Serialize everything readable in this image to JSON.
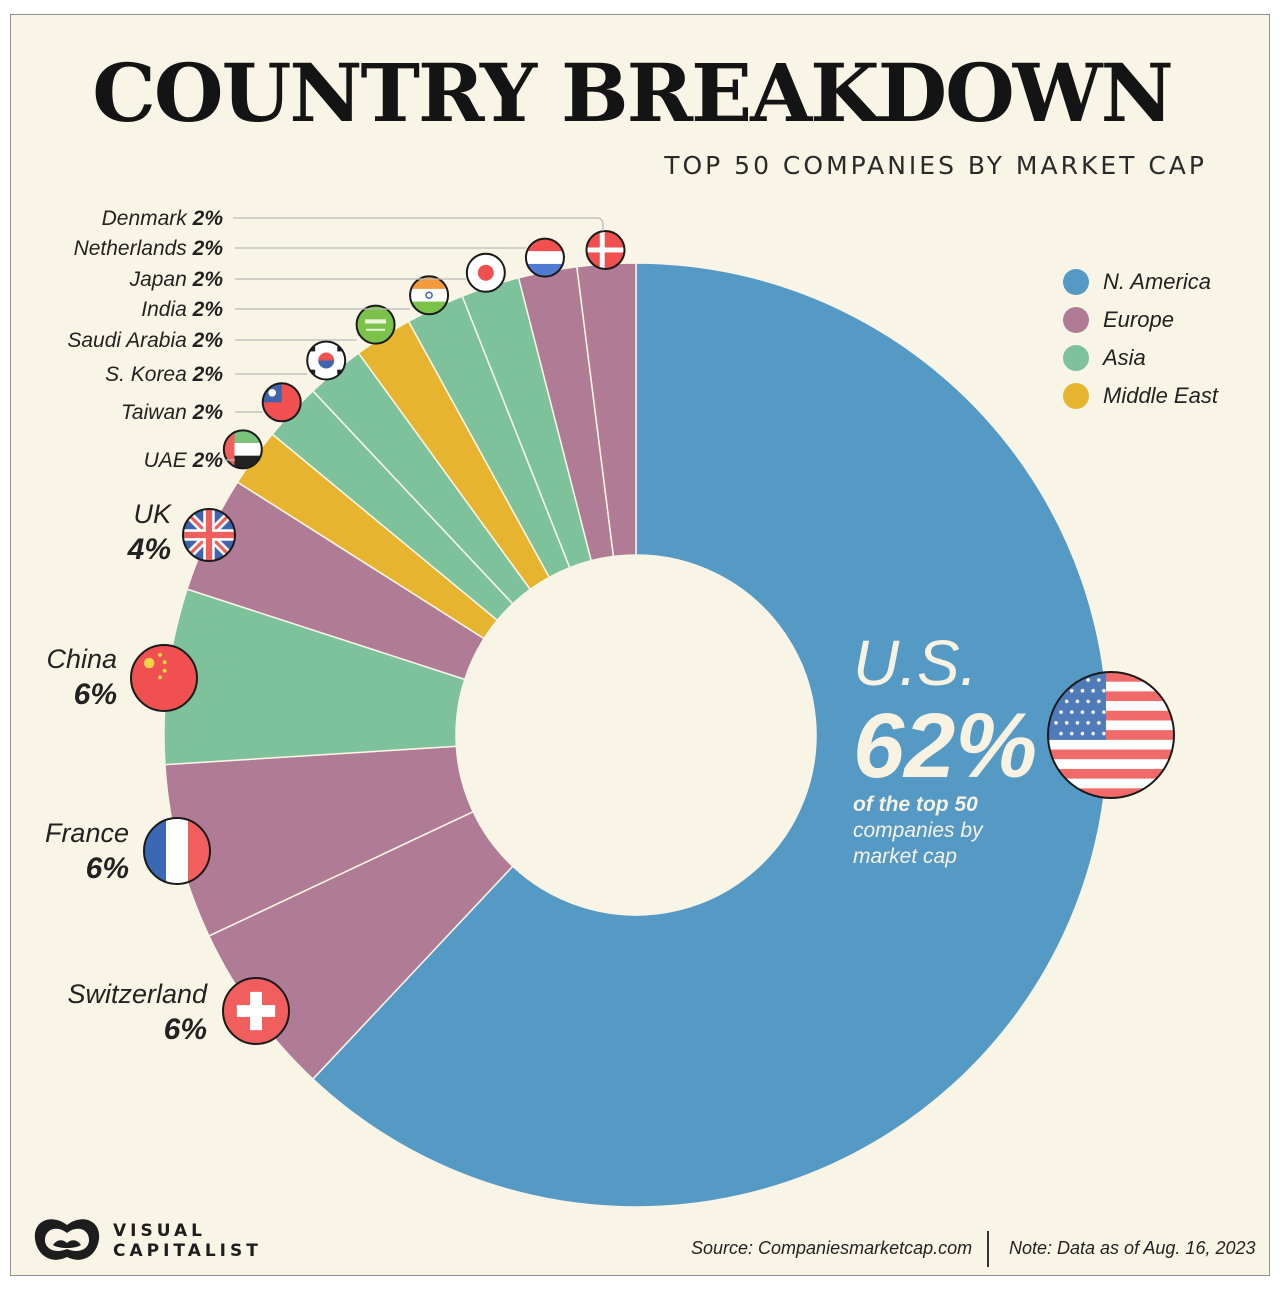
{
  "header": {
    "title": "COUNTRY BREAKDOWN",
    "subtitle": "TOP 50 COMPANIES BY MARKET CAP"
  },
  "legend": [
    {
      "label": "N. America",
      "color": "#5599c5"
    },
    {
      "label": "Europe",
      "color": "#b07b94"
    },
    {
      "label": "Asia",
      "color": "#7ec29c"
    },
    {
      "label": "Middle East",
      "color": "#e6b42e"
    }
  ],
  "highlight": {
    "country": "U.S.",
    "value": "62%",
    "caption_bold": "of the top 50",
    "caption_rest": [
      "companies by",
      "market cap"
    ]
  },
  "chart_data": {
    "type": "pie",
    "title": "COUNTRY BREAKDOWN",
    "subtitle": "TOP 50 COMPANIES BY MARKET CAP",
    "donut": true,
    "unit": "%",
    "slices": [
      {
        "label": "U.S.",
        "value": 62,
        "display": "62%",
        "region": "N. America",
        "flag": "us-flag-icon"
      },
      {
        "label": "Switzerland",
        "value": 6,
        "display": "6%",
        "region": "Europe",
        "flag": "swiss-flag-icon"
      },
      {
        "label": "France",
        "value": 6,
        "display": "6%",
        "region": "Europe",
        "flag": "france-flag-icon"
      },
      {
        "label": "China",
        "value": 6,
        "display": "6%",
        "region": "Asia",
        "flag": "china-flag-icon"
      },
      {
        "label": "UK",
        "value": 4,
        "display": "4%",
        "region": "Europe",
        "flag": "uk-flag-icon"
      },
      {
        "label": "UAE",
        "value": 2,
        "display": "2%",
        "region": "Middle East",
        "flag": "uae-flag-icon"
      },
      {
        "label": "Taiwan",
        "value": 2,
        "display": "2%",
        "region": "Asia",
        "flag": "taiwan-flag-icon"
      },
      {
        "label": "S. Korea",
        "value": 2,
        "display": "2%",
        "region": "Asia",
        "flag": "south-korea-flag-icon"
      },
      {
        "label": "Saudi Arabia",
        "value": 2,
        "display": "2%",
        "region": "Middle East",
        "flag": "saudi-arabia-flag-icon"
      },
      {
        "label": "India",
        "value": 2,
        "display": "2%",
        "region": "Asia",
        "flag": "india-flag-icon"
      },
      {
        "label": "Japan",
        "value": 2,
        "display": "2%",
        "region": "Asia",
        "flag": "japan-flag-icon"
      },
      {
        "label": "Netherlands",
        "value": 2,
        "display": "2%",
        "region": "Europe",
        "flag": "netherlands-flag-icon"
      },
      {
        "label": "Denmark",
        "value": 2,
        "display": "2%",
        "region": "Europe",
        "flag": "denmark-flag-icon"
      }
    ],
    "region_colors": {
      "N. America": "#5599c5",
      "Europe": "#b07b94",
      "Asia": "#7ec29c",
      "Middle East": "#e6b42e"
    },
    "legend_position": "right"
  },
  "footer": {
    "brand": "VISUAL\nCAPITALIST",
    "source": "Source: Companiesmarketcap.com",
    "note": "Note: Data as of Aug. 16, 2023"
  }
}
